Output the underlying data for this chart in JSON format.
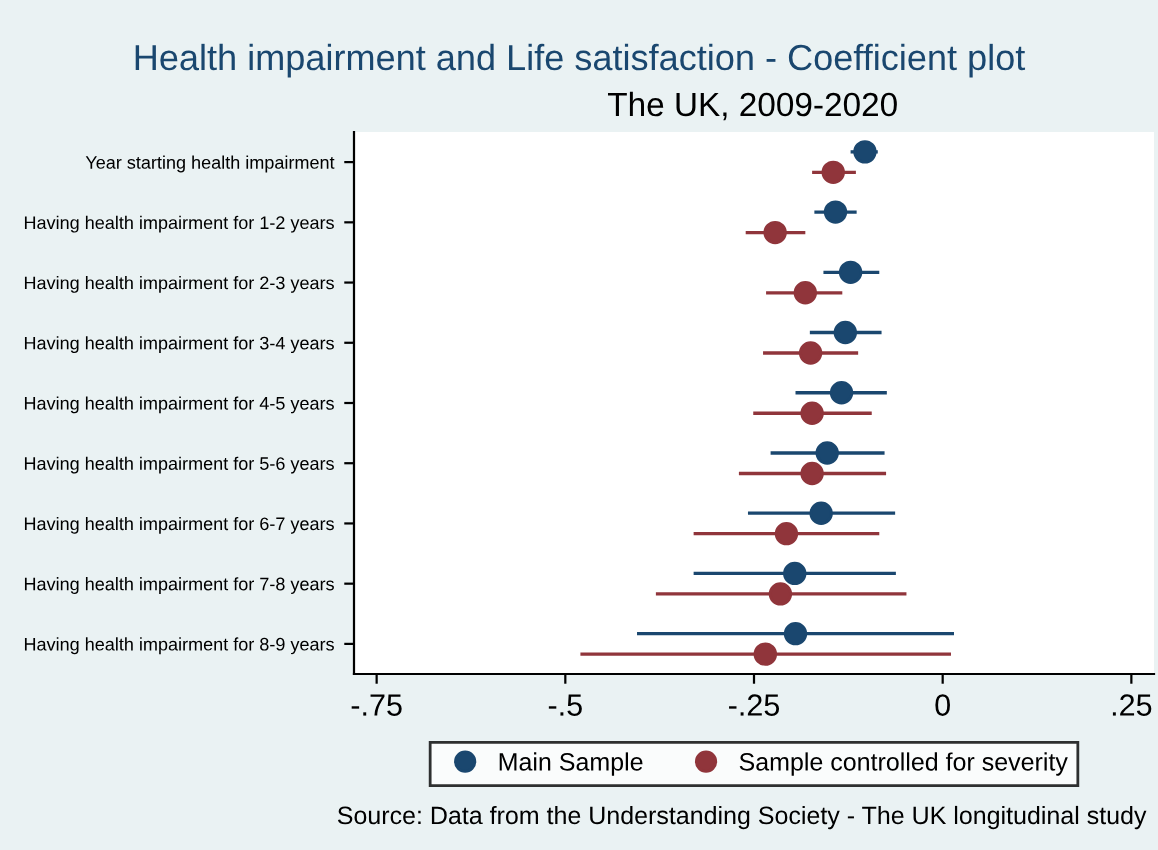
{
  "chart_data": {
    "type": "scatter",
    "orientation": "horizontal",
    "title": "Health impairment and Life satisfaction - Coefficient plot",
    "subtitle": "The UK, 2009-2020",
    "categories": [
      "Year starting health impairment",
      "Having health impairment for 1-2 years",
      "Having health impairment for 2-3 years",
      "Having health impairment for 3-4 years",
      "Having health impairment for 4-5 years",
      "Having health impairment for 5-6 years",
      "Having health impairment for 6-7 years",
      "Having health impairment for 7-8 years",
      "Having health impairment for 8-9 years"
    ],
    "series": [
      {
        "name": "Main Sample",
        "color": "#1a476f",
        "values": [
          -0.103,
          -0.142,
          -0.122,
          -0.129,
          -0.134,
          -0.153,
          -0.161,
          -0.196,
          -0.195
        ],
        "errors": [
          [
            -0.122,
            -0.086
          ],
          [
            -0.17,
            -0.114
          ],
          [
            -0.158,
            -0.084
          ],
          [
            -0.176,
            -0.081
          ],
          [
            -0.195,
            -0.074
          ],
          [
            -0.228,
            -0.077
          ],
          [
            -0.258,
            -0.063
          ],
          [
            -0.33,
            -0.062
          ],
          [
            -0.405,
            0.015
          ]
        ]
      },
      {
        "name": "Sample controlled for severity",
        "color": "#90353b",
        "values": [
          -0.145,
          -0.222,
          -0.182,
          -0.175,
          -0.173,
          -0.173,
          -0.207,
          -0.215,
          -0.235
        ],
        "errors": [
          [
            -0.173,
            -0.115
          ],
          [
            -0.261,
            -0.182
          ],
          [
            -0.234,
            -0.133
          ],
          [
            -0.238,
            -0.112
          ],
          [
            -0.251,
            -0.094
          ],
          [
            -0.27,
            -0.075
          ],
          [
            -0.33,
            -0.084
          ],
          [
            -0.38,
            -0.048
          ],
          [
            -0.48,
            0.011
          ]
        ]
      }
    ],
    "xlim": [
      -0.78,
      0.28
    ],
    "xticks": [
      {
        "value": -0.75,
        "label": "-.75"
      },
      {
        "value": -0.5,
        "label": "-.5"
      },
      {
        "value": -0.25,
        "label": "-.25"
      },
      0,
      {
        "value": 0.25,
        "label": ".25"
      }
    ],
    "marker": "circle",
    "legend": "bottom",
    "annotations": [
      "Source: Data from the Understanding Society - The UK longitudinal study"
    ]
  }
}
